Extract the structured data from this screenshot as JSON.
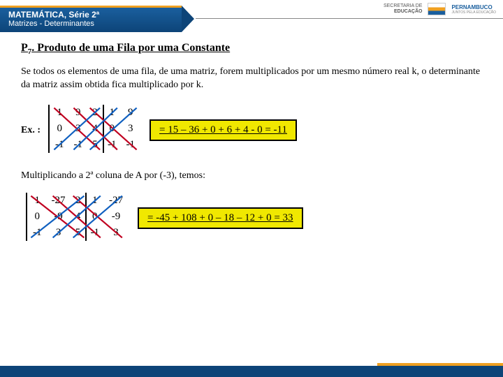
{
  "header": {
    "subject": "MATEMÁTICA, Série 2ª",
    "topic": "Matrizes - Determinantes",
    "secretaria": "SECRETARIA DE",
    "educacao": "EDUCAÇÃO",
    "state": "PERNAMBUCO",
    "slogan": "JUNTOS PELA EDUCAÇÃO"
  },
  "section": {
    "prefix": "P",
    "sub": "7",
    "title": ". Produto de uma Fila por uma Constante"
  },
  "description": "Se todos os elementos de uma fila, de uma matriz, forem multiplicados por um mesmo número real k, o determinante da matriz assim obtida fica multiplicado por k.",
  "example_label": "Ex. :",
  "matrix1": {
    "rows": [
      [
        "1",
        "9",
        "2",
        "1",
        "9"
      ],
      [
        "0",
        "3",
        "4",
        "0",
        "3"
      ],
      [
        "-1",
        "-1",
        "5",
        "-1",
        "-1"
      ]
    ],
    "vbar_right_col": 3,
    "diag_color_down": "#c00020",
    "diag_color_up": "#1060c0"
  },
  "result1": "= 15 – 36 + 0 + 6 + 4 - 0 = -11",
  "mult_text": "Multiplicando a 2ª coluna de A por (-3), temos:",
  "matrix2": {
    "rows": [
      [
        "1",
        "-27",
        "2",
        "1",
        "-27"
      ],
      [
        "0",
        "-9",
        "4",
        "0",
        "-9"
      ],
      [
        "-1",
        "3",
        "5",
        "-1",
        "3"
      ]
    ],
    "vbar_right_col": 3,
    "diag_color_down": "#c00020",
    "diag_color_up": "#1060c0"
  },
  "result2": "= -45 + 108 + 0 – 18 – 12 + 0 = 33"
}
